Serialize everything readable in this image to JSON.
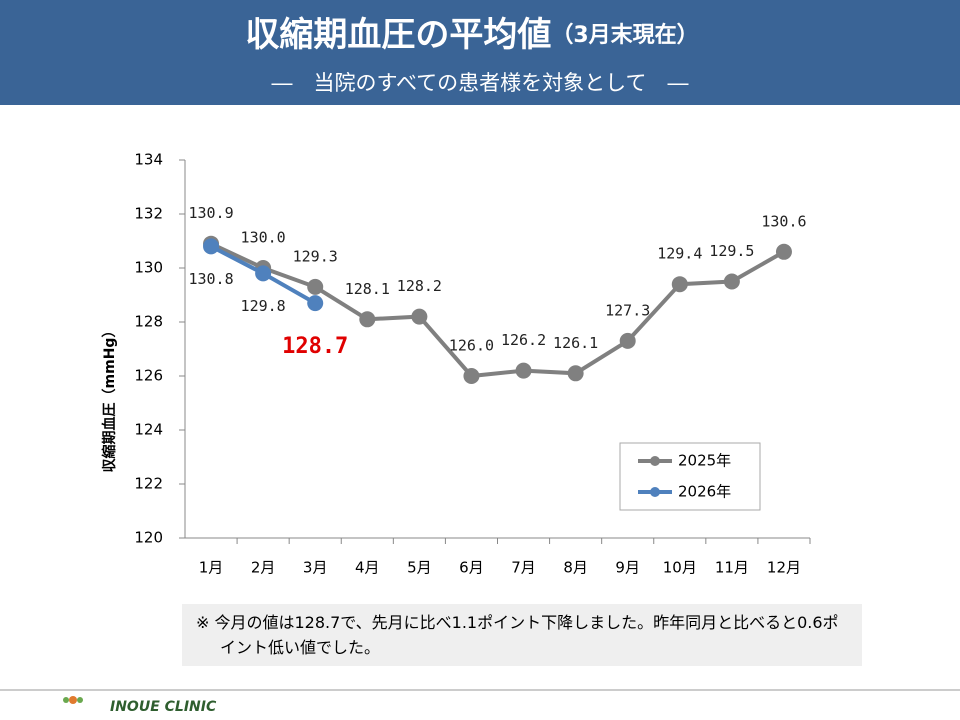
{
  "header": {
    "title": "収縮期血圧の平均値",
    "title_note": "（3月末現在）",
    "subtitle": "―　当院のすべての患者様を対象として　―"
  },
  "chart_data": {
    "type": "line",
    "y_label": "収縮期血圧（mmHg）",
    "categories": [
      "1月",
      "2月",
      "3月",
      "4月",
      "5月",
      "6月",
      "7月",
      "8月",
      "9月",
      "10月",
      "11月",
      "12月"
    ],
    "series": [
      {
        "name": "2025年",
        "color": "#808080",
        "values": [
          130.9,
          130.0,
          129.3,
          128.1,
          128.2,
          126.0,
          126.2,
          126.1,
          127.3,
          129.4,
          129.5,
          130.6
        ],
        "value_labels": [
          "130.9",
          "130.0",
          "129.3",
          "128.1",
          "128.2",
          "126.0",
          "126.2",
          "126.1",
          "127.3",
          "129.4",
          "129.5",
          "130.6"
        ]
      },
      {
        "name": "2026年",
        "color": "#4f81bd",
        "values": [
          130.8,
          129.8,
          128.7,
          null,
          null,
          null,
          null,
          null,
          null,
          null,
          null,
          null
        ],
        "value_labels": [
          "130.8",
          "129.8",
          "128.7",
          null,
          null,
          null,
          null,
          null,
          null,
          null,
          null,
          null
        ]
      }
    ],
    "ylim": [
      120,
      134
    ],
    "yticks": [
      120,
      122,
      124,
      126,
      128,
      130,
      132,
      134
    ],
    "grid": false,
    "legend": "lower-right"
  },
  "note": "※ 今月の値は128.7で、先月に比べ1.1ポイント下降しました。昨年同月と比べると0.6ポイント低い値でした。",
  "footer": {
    "clinic": "INOUE CLINIC"
  }
}
